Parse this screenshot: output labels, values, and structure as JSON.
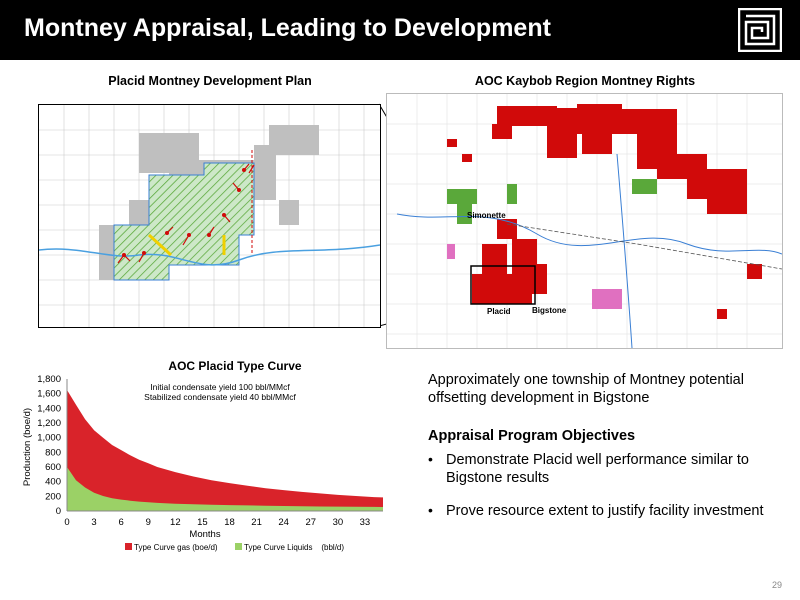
{
  "header": {
    "title": "Montney Appraisal, Leading to Development"
  },
  "logo": {
    "icon": "square-spiral-logo-icon"
  },
  "left_map": {
    "title": "Placid Montney Development Plan"
  },
  "right_map": {
    "title": "AOC Kaybob Region Montney Rights",
    "labels": {
      "simonette": "Simonette",
      "placid": "Placid",
      "bigstone": "Bigstone"
    }
  },
  "text": {
    "intro": "Approximately one township of Montney potential offsetting development in Bigstone",
    "objectives_heading": "Appraisal Program Objectives",
    "bullets": [
      "Demonstrate Placid well performance similar to Bigstone results",
      "Prove resource extent to justify facility investment"
    ]
  },
  "page_number": "29",
  "colors": {
    "gas": "#d9232a",
    "liquids": "#9bd166",
    "header_bg": "#000000",
    "map_red": "#d10a0a",
    "map_green": "#5aa83a"
  },
  "chart_data": {
    "type": "area",
    "title": "AOC Placid Type Curve",
    "annotations": [
      "Initial condensate yield 100 bbl/MMcf",
      "Stabilized condensate yield 40 bbl/MMcf"
    ],
    "xlabel": "Months",
    "ylabel": "Production (boe/d)",
    "xlim": [
      0,
      35
    ],
    "ylim": [
      0,
      1800
    ],
    "x_ticks": [
      "0",
      "3",
      "6",
      "9",
      "12",
      "15",
      "18",
      "21",
      "24",
      "27",
      "30",
      "33"
    ],
    "y_ticks": [
      "0",
      "200",
      "400",
      "600",
      "800",
      "1,000",
      "1,200",
      "1,400",
      "1,600",
      "1,800"
    ],
    "x": [
      0,
      1,
      2,
      3,
      4,
      5,
      6,
      7,
      8,
      9,
      10,
      12,
      14,
      16,
      18,
      20,
      22,
      24,
      26,
      28,
      30,
      32,
      34,
      35
    ],
    "series": [
      {
        "name": "Type Curve gas (boe/d)",
        "values": [
          1650,
          1450,
          1250,
          1100,
          1000,
          900,
          830,
          760,
          700,
          650,
          600,
          530,
          470,
          420,
          380,
          345,
          310,
          285,
          260,
          240,
          220,
          205,
          190,
          185
        ]
      },
      {
        "name": "Type Curve Liquids    (bbl/d)",
        "values": [
          600,
          420,
          320,
          250,
          205,
          175,
          155,
          140,
          128,
          118,
          110,
          100,
          92,
          86,
          80,
          76,
          72,
          68,
          65,
          62,
          60,
          58,
          56,
          55
        ]
      }
    ],
    "legend": "bottom",
    "grid": false
  }
}
